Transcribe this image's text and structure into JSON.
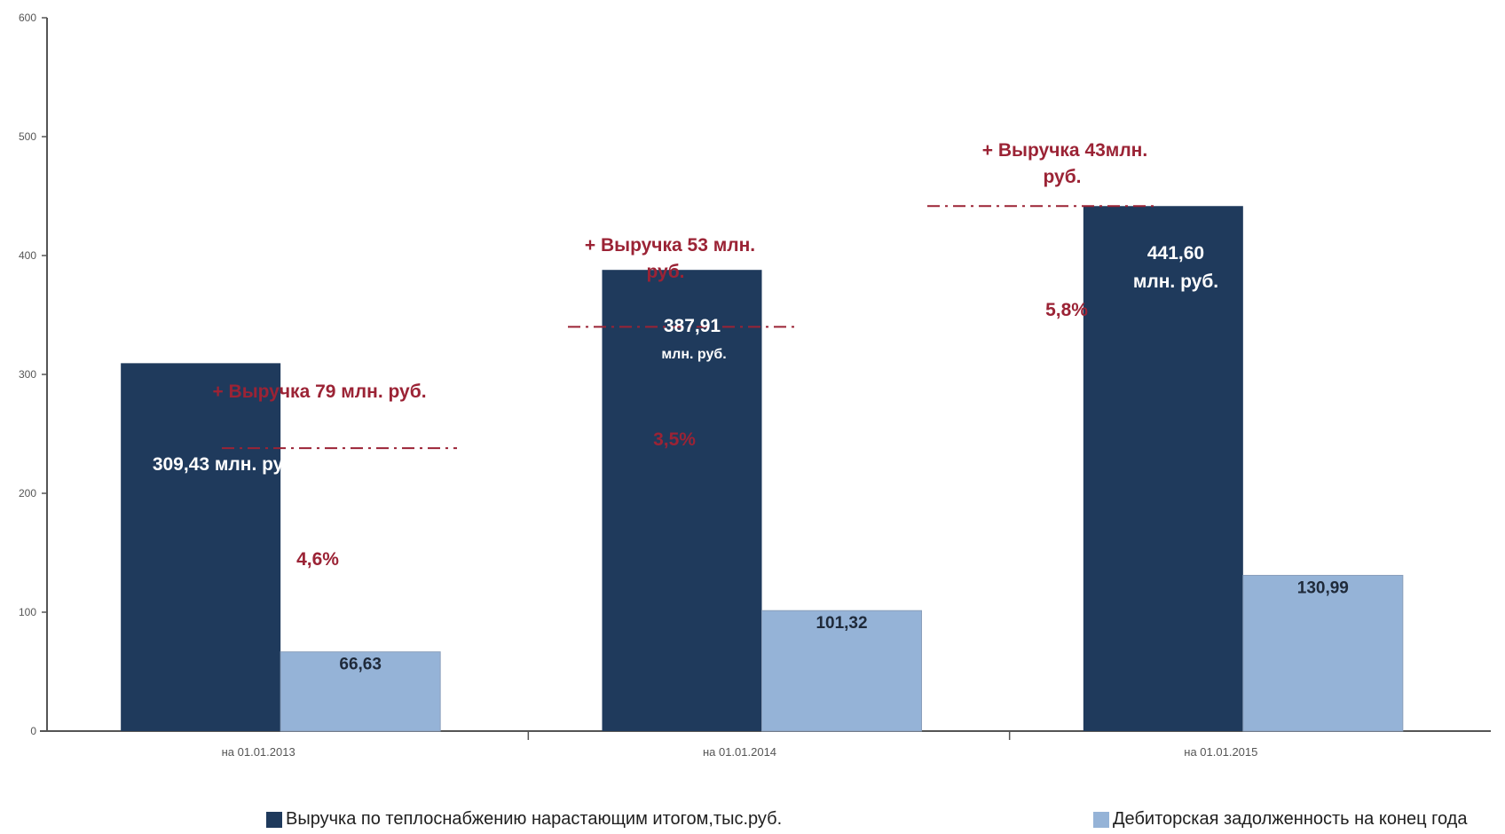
{
  "chart_data": {
    "type": "bar",
    "categories": [
      "на 01.01.2013",
      "на 01.01.2014",
      "на 01.01.2015"
    ],
    "ylim": [
      0,
      600
    ],
    "yticks": [
      0,
      100,
      200,
      300,
      400,
      500,
      600
    ],
    "grid": false,
    "legend_position": "bottom",
    "series": [
      {
        "name": "Выручка по теплоснабжению нарастающим итогом,тыс.руб.",
        "color": "#1f3a5c",
        "values": [
          309.43,
          387.91,
          441.6
        ],
        "labels": [
          [
            "309,43 млн. руб."
          ],
          [
            "387,91",
            "млн. руб."
          ],
          [
            "441,60",
            "млн. руб."
          ]
        ]
      },
      {
        "name": "Дебиторская задолженность на конец года",
        "color": "#95b3d7",
        "values": [
          66.63,
          101.32,
          130.99
        ],
        "labels": [
          [
            "66,63"
          ],
          [
            "101,32"
          ],
          [
            "130,99"
          ]
        ]
      }
    ],
    "annotations": {
      "increase_labels": [
        [
          "+ Выручка 79 млн. руб."
        ],
        [
          "+ Выручка 53 млн.",
          "руб."
        ],
        [
          "+ Выручка 43млн.",
          "руб."
        ]
      ],
      "percent_labels": [
        "4,6%",
        "3,5%",
        "5,8%"
      ],
      "dash_line_levels": [
        238,
        340,
        441.6
      ]
    }
  }
}
